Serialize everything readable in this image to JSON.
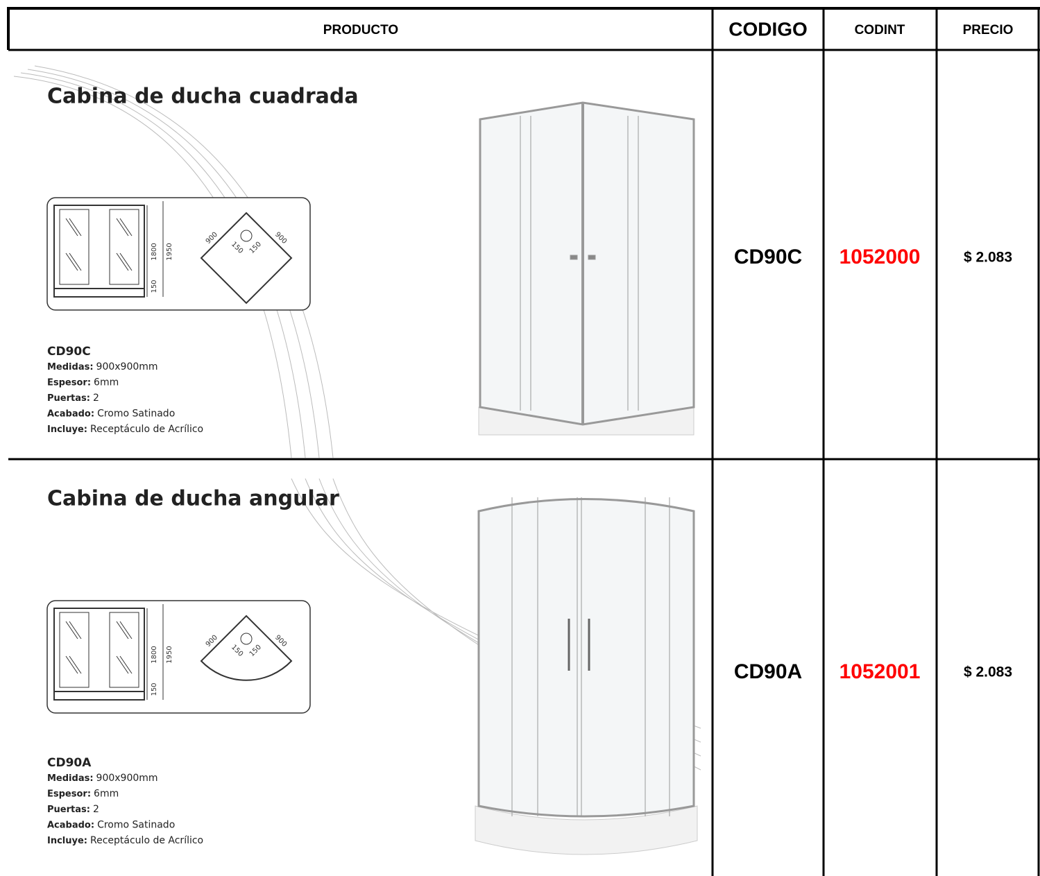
{
  "table": {
    "headers": [
      "PRODUCTO",
      "CODIGO",
      "CODINT",
      "PRECIO"
    ],
    "rows": [
      {
        "product": {
          "title": "Cabina de ducha cuadrada",
          "dimensions": [
            "1800",
            "1950",
            "150",
            "900",
            "900",
            "150",
            "150"
          ],
          "model": "CD90C",
          "specs": [
            {
              "label": "Medidas:",
              "value": "900x900mm"
            },
            {
              "label": "Espesor:",
              "value": "6mm"
            },
            {
              "label": "Puertas:",
              "value": "2"
            },
            {
              "label": "Acabado:",
              "value": "Cromo Satinado"
            },
            {
              "label": "Incluye:",
              "value": "Receptáculo de Acrílico"
            }
          ]
        },
        "codigo": "CD90C",
        "codint": "1052000",
        "precio": "$ 2.083"
      },
      {
        "product": {
          "title": "Cabina de ducha angular",
          "dimensions": [
            "1800",
            "1950",
            "150",
            "900",
            "900",
            "150",
            "150"
          ],
          "model": "CD90A",
          "specs": [
            {
              "label": "Medidas:",
              "value": "900x900mm"
            },
            {
              "label": "Espesor:",
              "value": "6mm"
            },
            {
              "label": "Puertas:",
              "value": "2"
            },
            {
              "label": "Acabado:",
              "value": "Cromo Satinado"
            },
            {
              "label": "Incluye:",
              "value": "Receptáculo de Acrílico"
            }
          ]
        },
        "codigo": "CD90A",
        "codint": "1052001",
        "precio": "$ 2.083"
      }
    ]
  }
}
